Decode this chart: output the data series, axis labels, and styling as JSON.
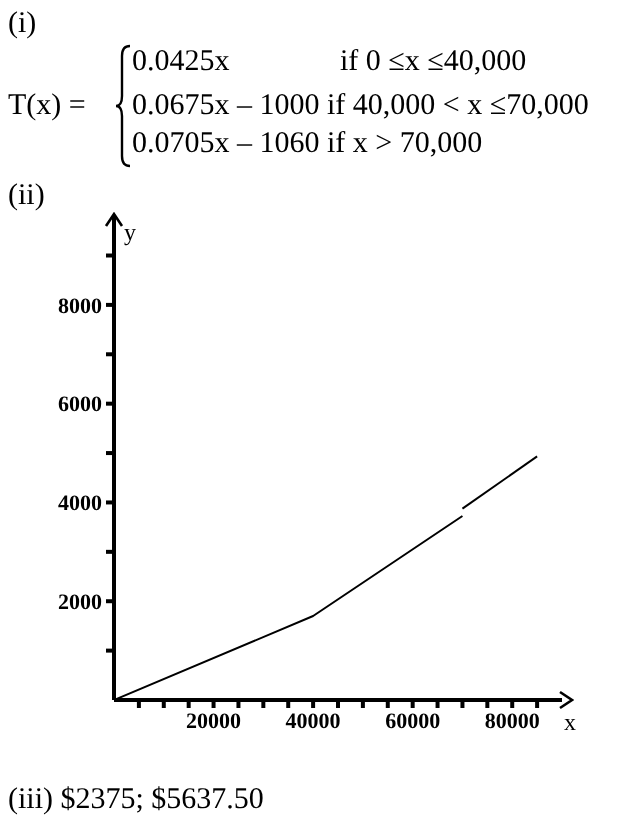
{
  "chart_data": {
    "type": "line",
    "annotations": [
      "(i)",
      "T(x) =",
      "0.0425x",
      "if 0 ≤x ≤40,000",
      "0.0675x – 1000 if 40,000 < x ≤70,000",
      "0.0705x – 1060 if x > 70,000",
      "(ii)",
      "(iii) $2375; $5637.50"
    ],
    "xlabel": "x",
    "ylabel": "y",
    "series": [
      {
        "color": "#000000",
        "x": [
          0,
          40000,
          70000
        ],
        "values": [
          0,
          1700,
          3725
        ]
      },
      {
        "color": "#000000",
        "x": [
          70000,
          85000
        ],
        "values": [
          3875,
          4932.5
        ]
      }
    ],
    "xlim": [
      0,
      90000
    ],
    "xticks": [
      {
        "value": 5000,
        "label": null
      },
      {
        "value": 10000,
        "label": null
      },
      {
        "value": 15000,
        "label": null
      },
      20000,
      {
        "value": 25000,
        "label": null
      },
      {
        "value": 30000,
        "label": null
      },
      {
        "value": 35000,
        "label": null
      },
      40000,
      {
        "value": 45000,
        "label": null
      },
      {
        "value": 50000,
        "label": null
      },
      {
        "value": 55000,
        "label": null
      },
      60000,
      {
        "value": 65000,
        "label": null
      },
      {
        "value": 70000,
        "label": null
      },
      {
        "value": 75000,
        "label": null
      },
      80000,
      {
        "value": 85000,
        "label": null
      }
    ],
    "ylim": [
      0,
      9800
    ],
    "yticks": [
      {
        "value": 1000,
        "label": null
      },
      2000,
      {
        "value": 3000,
        "label": null
      },
      4000,
      {
        "value": 5000,
        "label": null
      },
      6000,
      {
        "value": 7000,
        "label": null
      },
      8000,
      {
        "value": 9000,
        "label": null
      }
    ],
    "grid": false,
    "legend": false,
    "marker": "none",
    "line_style": "solid"
  }
}
